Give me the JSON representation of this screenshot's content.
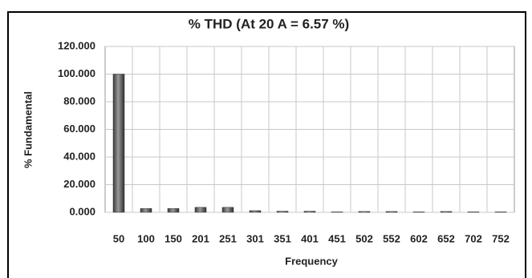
{
  "chart_data": {
    "type": "bar",
    "title": "% THD (At 20 A = 6.57 %)",
    "x_label": "Frequency",
    "y_label": "% Fundamental",
    "categories": [
      "50",
      "100",
      "150",
      "201",
      "251",
      "301",
      "351",
      "401",
      "451",
      "502",
      "552",
      "602",
      "652",
      "702",
      "752"
    ],
    "values": [
      100,
      2.8,
      2.8,
      3.6,
      3.6,
      1.2,
      0.8,
      0.8,
      0.3,
      0.6,
      0.6,
      0.3,
      0.6,
      0.3,
      0.3
    ],
    "color": "#6e6e6e",
    "ylim": [
      0,
      120
    ],
    "yticks": [
      {
        "value": 0,
        "label": "0.000"
      },
      {
        "value": 20,
        "label": "20.000"
      },
      {
        "value": 40,
        "label": "40.000"
      },
      {
        "value": 60,
        "label": "60.000"
      },
      {
        "value": 80,
        "label": "80.000"
      },
      {
        "value": 100,
        "label": "100.000"
      },
      {
        "value": 120,
        "label": "120.000"
      }
    ],
    "grid": true
  }
}
